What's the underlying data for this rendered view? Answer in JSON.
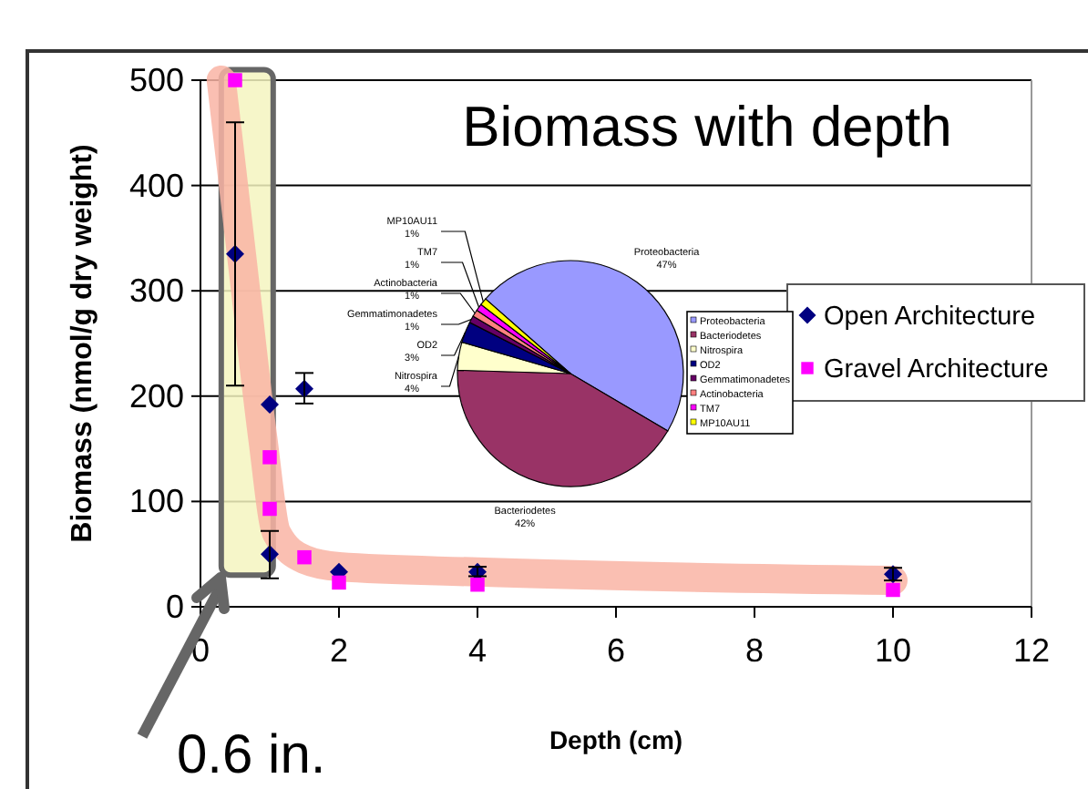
{
  "chart_data": [
    {
      "type": "scatter",
      "title": "Biomass with depth",
      "xlabel": "Depth (cm)",
      "ylabel": "Biomass (nmol/g dry weight)",
      "xlim": [
        0,
        12
      ],
      "xticks": [
        0,
        2,
        4,
        6,
        8,
        10,
        12
      ],
      "ylim": [
        0,
        500
      ],
      "yticks": [
        0,
        100,
        200,
        300,
        400,
        500
      ],
      "grid": "y",
      "legend": "right",
      "annotations": [
        "0.6 in."
      ],
      "series": [
        {
          "type": "line",
          "color": "#f9b4a4",
          "x": [
            0.3,
            0.6,
            0.9,
            1.1,
            1.5,
            2,
            4,
            10
          ],
          "values": [
            500,
            330,
            160,
            70,
            45,
            38,
            33,
            25
          ]
        },
        {
          "name": "Open Architecture",
          "color": "#000080",
          "marker": "diamond",
          "x": [
            0.5,
            1,
            1,
            1.5,
            2,
            4,
            10
          ],
          "values": [
            335,
            192,
            50,
            207,
            33,
            33,
            31
          ],
          "errors": [
            [
              210,
              460
            ],
            null,
            [
              27,
              72
            ],
            [
              193,
              222
            ],
            null,
            [
              29,
              38
            ],
            [
              25,
              37
            ]
          ]
        },
        {
          "name": "Gravel Architecture",
          "color": "#ff00ff",
          "marker": "square",
          "x": [
            0.5,
            1,
            1,
            1.5,
            2,
            4,
            10
          ],
          "values": [
            500,
            142,
            93,
            47,
            23,
            21,
            16
          ]
        }
      ]
    },
    {
      "type": "pie",
      "legend": "right",
      "categories": [
        "Proteobacteria",
        "Bacteriodetes",
        "Nitrospira",
        "OD2",
        "Gemmatimonadetes",
        "Actinobacteria",
        "TM7",
        "MP10AU11"
      ],
      "values": [
        47,
        42,
        4,
        3,
        1,
        1,
        1,
        1
      ],
      "value_labels": [
        "47%",
        "42%",
        "4%",
        "3%",
        "1%",
        "1%",
        "1%",
        "1%"
      ],
      "colors": [
        "#9999ff",
        "#993366",
        "#ffffcc",
        "#000080",
        "#660066",
        "#ff8080",
        "#ff00ff",
        "#ffff00"
      ]
    }
  ]
}
